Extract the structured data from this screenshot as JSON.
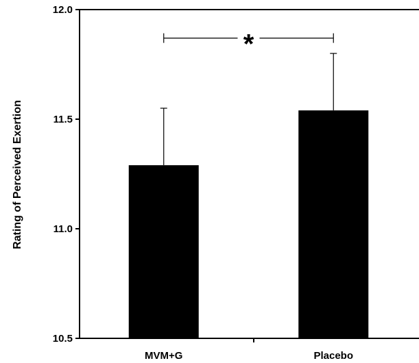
{
  "chart_data": {
    "type": "bar",
    "categories": [
      "MVM+G",
      "Placebo"
    ],
    "values": [
      11.29,
      11.54
    ],
    "error_upper": [
      11.55,
      11.8
    ],
    "title": "",
    "xlabel": "",
    "ylabel": "Rating of Perceived Exertion",
    "ylim": [
      10.5,
      12.0
    ],
    "yticks": [
      10.5,
      11.0,
      11.5,
      12.0
    ],
    "ytick_labels": [
      "10.5",
      "11.0",
      "11.5",
      "12.0"
    ],
    "bar_color": "#000000",
    "grid": false,
    "legend": "none",
    "annotations": [
      {
        "text": "*",
        "from": "MVM+G",
        "to": "Placebo",
        "y": 11.87
      }
    ]
  }
}
